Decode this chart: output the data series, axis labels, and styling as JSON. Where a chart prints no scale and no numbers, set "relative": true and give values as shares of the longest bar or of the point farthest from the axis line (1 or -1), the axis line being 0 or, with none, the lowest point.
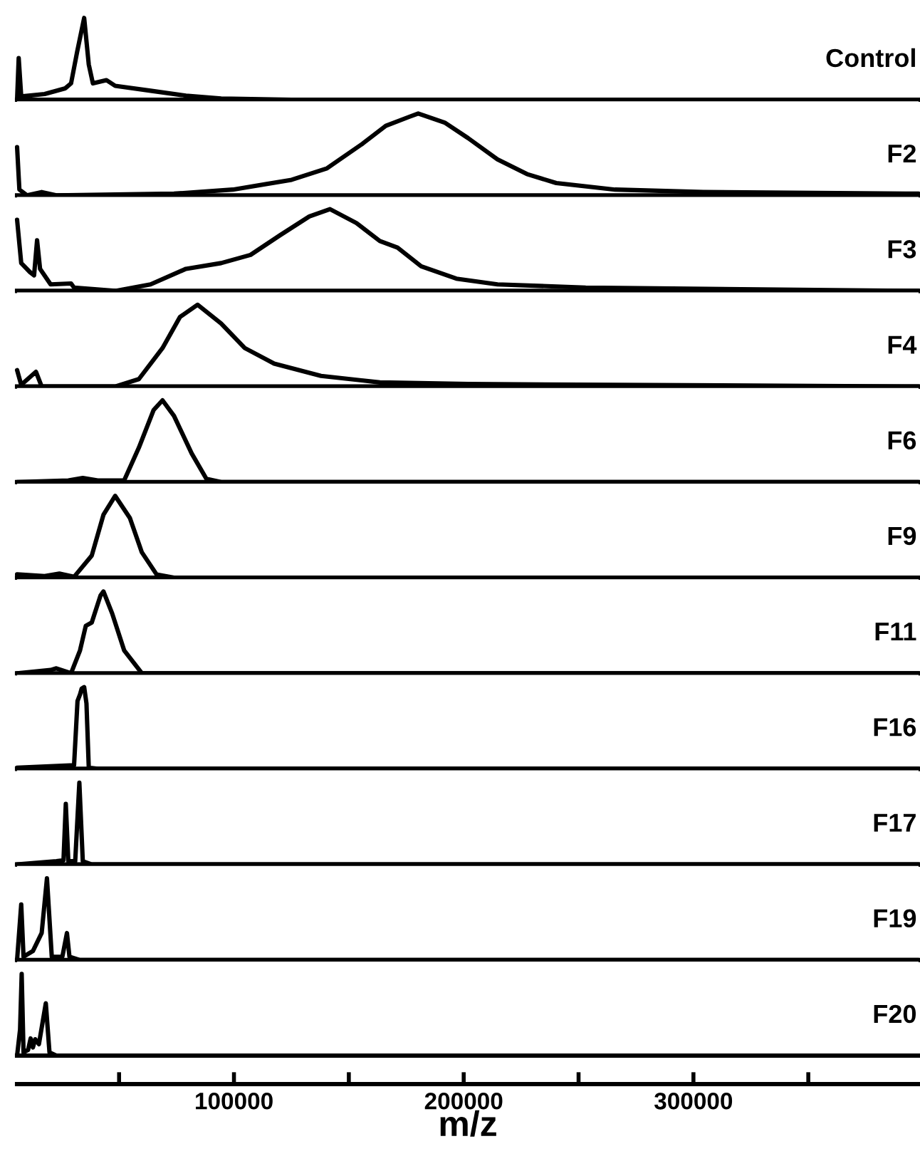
{
  "chart_data": [
    {
      "type": "line",
      "relative": true,
      "tick_labels": false,
      "xlim": [
        5600,
        398000
      ],
      "x": [
        5600,
        6300,
        7400,
        17600,
        26600,
        29100,
        31700,
        34800,
        36800,
        38600,
        44500,
        48300,
        63700,
        79100,
        94400,
        125100,
        398000
      ],
      "series": [
        {
          "name": "Control",
          "color": "#000000",
          "values": [
            0,
            0.51,
            0.04,
            0.07,
            0.14,
            0.2,
            0.58,
            1,
            0.43,
            0.2,
            0.24,
            0.17,
            0.11,
            0.05,
            0.015,
            0,
            0
          ]
        }
      ]
    },
    {
      "type": "line",
      "relative": true,
      "tick_labels": false,
      "xlim": [
        5600,
        398000
      ],
      "x": [
        5600,
        6600,
        9900,
        16300,
        22700,
        73900,
        99500,
        125100,
        140500,
        155900,
        166100,
        176300,
        180200,
        191700,
        201900,
        214700,
        227500,
        240300,
        265900,
        304300,
        398000
      ],
      "series": [
        {
          "name": "F2",
          "color": "#000000",
          "values": [
            0.59,
            0.07,
            0,
            0.04,
            0,
            0.02,
            0.07,
            0.19,
            0.33,
            0.63,
            0.85,
            0.96,
            1,
            0.89,
            0.7,
            0.44,
            0.26,
            0.15,
            0.07,
            0.04,
            0.02
          ]
        }
      ]
    },
    {
      "type": "line",
      "relative": true,
      "tick_labels": false,
      "xlim": [
        5600,
        398000
      ],
      "x": [
        5600,
        7400,
        11200,
        13000,
        14300,
        15600,
        20200,
        29100,
        30400,
        48300,
        63700,
        79100,
        94400,
        107200,
        120000,
        132800,
        141800,
        153300,
        163500,
        171200,
        181500,
        196800,
        214700,
        253100,
        398000
      ],
      "series": [
        {
          "name": "F3",
          "color": "#000000",
          "values": [
            0.87,
            0.34,
            0.23,
            0.19,
            0.62,
            0.27,
            0.08,
            0.09,
            0.04,
            0,
            0.08,
            0.27,
            0.34,
            0.44,
            0.68,
            0.91,
            1,
            0.83,
            0.61,
            0.53,
            0.3,
            0.15,
            0.08,
            0.04,
            0
          ]
        }
      ]
    },
    {
      "type": "line",
      "relative": true,
      "tick_labels": false,
      "xlim": [
        5600,
        398000
      ],
      "x": [
        5600,
        7400,
        13800,
        16300,
        48300,
        58600,
        68900,
        76500,
        84200,
        94400,
        104700,
        117500,
        137900,
        163500,
        201900,
        398000
      ],
      "series": [
        {
          "name": "F4",
          "color": "#000000",
          "values": [
            0.2,
            0.02,
            0.18,
            0,
            0,
            0.09,
            0.47,
            0.85,
            1,
            0.77,
            0.47,
            0.28,
            0.13,
            0.05,
            0.03,
            0
          ]
        }
      ]
    },
    {
      "type": "line",
      "relative": true,
      "tick_labels": false,
      "xlim": [
        5600,
        398000
      ],
      "x": [
        5600,
        27900,
        34200,
        40700,
        52200,
        58600,
        65000,
        68900,
        73900,
        81600,
        88000,
        94400,
        398000
      ],
      "series": [
        {
          "name": "F6",
          "color": "#000000",
          "values": [
            0,
            0.02,
            0.05,
            0.02,
            0.02,
            0.42,
            0.88,
            1,
            0.81,
            0.35,
            0.04,
            0,
            0
          ]
        }
      ]
    },
    {
      "type": "line",
      "relative": true,
      "tick_labels": false,
      "xlim": [
        5600,
        398000
      ],
      "x": [
        5600,
        17600,
        24000,
        30400,
        38100,
        43200,
        48300,
        54700,
        59900,
        66300,
        73900,
        398000
      ],
      "series": [
        {
          "name": "F9",
          "color": "#000000",
          "values": [
            0.04,
            0.02,
            0.05,
            0.01,
            0.27,
            0.77,
            1,
            0.73,
            0.31,
            0.04,
            0,
            0
          ]
        }
      ]
    },
    {
      "type": "line",
      "relative": true,
      "tick_labels": false,
      "xlim": [
        5600,
        398000
      ],
      "x": [
        5600,
        20200,
        22700,
        29100,
        33000,
        35500,
        38100,
        41900,
        43200,
        47000,
        52200,
        59900,
        398000
      ],
      "series": [
        {
          "name": "F11",
          "color": "#000000",
          "values": [
            0,
            0.04,
            0.06,
            0,
            0.28,
            0.58,
            0.62,
            0.95,
            1,
            0.73,
            0.28,
            0,
            0
          ]
        }
      ]
    },
    {
      "type": "line",
      "relative": true,
      "tick_labels": false,
      "xlim": [
        5600,
        398000
      ],
      "x": [
        5600,
        30400,
        31900,
        33000,
        33700,
        34800,
        35800,
        36800,
        40700,
        398000
      ],
      "series": [
        {
          "name": "F16",
          "color": "#000000",
          "values": [
            0.015,
            0.045,
            0.83,
            0.91,
            0.98,
            1,
            0.8,
            0.015,
            0,
            0
          ]
        }
      ]
    },
    {
      "type": "line",
      "relative": true,
      "tick_labels": false,
      "xlim": [
        5600,
        398000
      ],
      "x": [
        5600,
        22700,
        25800,
        26800,
        27900,
        30900,
        32700,
        34200,
        38100,
        398000
      ],
      "series": [
        {
          "name": "F17",
          "color": "#000000",
          "values": [
            0,
            0.04,
            0.05,
            0.74,
            0.04,
            0.04,
            1,
            0.04,
            0,
            0
          ]
        }
      ]
    },
    {
      "type": "line",
      "relative": true,
      "tick_labels": false,
      "xlim": [
        5600,
        398000
      ],
      "x": [
        5600,
        7400,
        8400,
        12500,
        16300,
        18600,
        20700,
        25300,
        27300,
        28400,
        33000,
        398000
      ],
      "series": [
        {
          "name": "F19",
          "color": "#000000",
          "values": [
            0,
            0.68,
            0.04,
            0.11,
            0.33,
            1,
            0.04,
            0.04,
            0.33,
            0.04,
            0,
            0
          ]
        }
      ]
    },
    {
      "type": "line",
      "relative": true,
      "tick_labels": "x",
      "xlim": [
        5600,
        398000
      ],
      "xlabel": "m/z",
      "xticks": [
        {
          "value": 50000,
          "label": null
        },
        100000,
        {
          "value": 150000,
          "label": null
        },
        200000,
        {
          "value": 250000,
          "label": null
        },
        300000,
        {
          "value": 350000,
          "label": null
        }
      ],
      "x": [
        5600,
        6900,
        7600,
        8400,
        10400,
        11500,
        12500,
        13500,
        15100,
        18100,
        19700,
        22700,
        398000
      ],
      "series": [
        {
          "name": "F20",
          "color": "#000000",
          "values": [
            0,
            0.32,
            1,
            0.04,
            0.07,
            0.21,
            0.1,
            0.2,
            0.14,
            0.64,
            0.04,
            0,
            0
          ]
        }
      ]
    }
  ]
}
